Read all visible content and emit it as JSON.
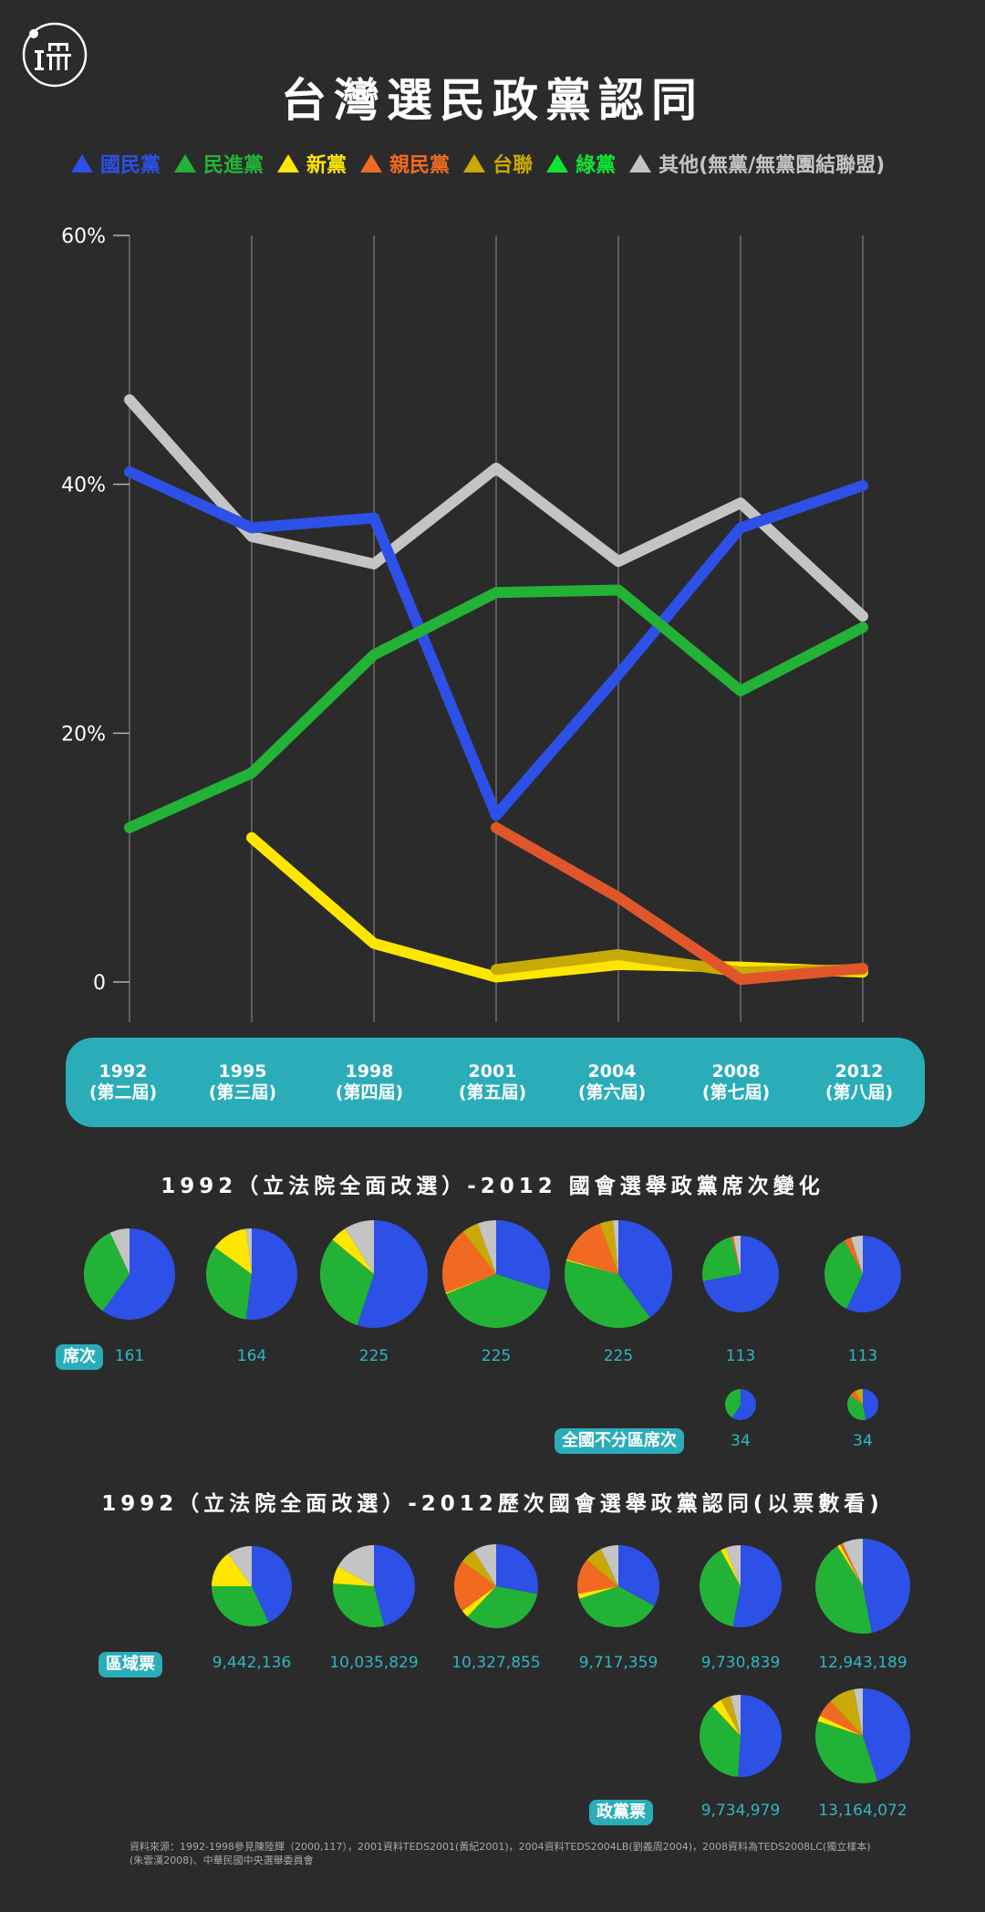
{
  "title": "台灣選民政黨認同",
  "logo_text": "端",
  "legend": [
    {
      "name": "國民黨",
      "color": "#2d50e6"
    },
    {
      "name": "民進黨",
      "color": "#22b336"
    },
    {
      "name": "新黨",
      "color": "#ffe600"
    },
    {
      "name": "親民黨",
      "color": "#f26a21"
    },
    {
      "name": "台聯",
      "color": "#c9a905"
    },
    {
      "name": "綠黨",
      "color": "#0ee636"
    },
    {
      "name": "其他(無黨/無黨團結聯盟)",
      "color": "#c4c4c4"
    }
  ],
  "chart_data": {
    "type": "line",
    "x": [
      "1992",
      "1995",
      "1998",
      "2001",
      "2004",
      "2008",
      "2012"
    ],
    "x_tick_labels": [
      {
        "year": "1992",
        "term": "(第二屆)"
      },
      {
        "year": "1995",
        "term": "(第三屆)"
      },
      {
        "year": "1998",
        "term": "(第四屆)"
      },
      {
        "year": "2001",
        "term": "(第五屆)"
      },
      {
        "year": "2004",
        "term": "(第六屆)"
      },
      {
        "year": "2008",
        "term": "(第七屆)"
      },
      {
        "year": "2012",
        "term": "(第八屆)"
      }
    ],
    "y_ticks": [
      {
        "value": 0,
        "label": "0"
      },
      {
        "value": 20,
        "label": "20%"
      },
      {
        "value": 40,
        "label": "40%"
      },
      {
        "value": 60,
        "label": "60%"
      }
    ],
    "ylim": [
      0,
      60
    ],
    "series": [
      {
        "name": "其他(無黨/無黨團結聯盟)",
        "color": "#c4c4c4",
        "values": [
          46.8,
          35.8,
          33.6,
          41.3,
          33.8,
          38.5,
          29.4
        ]
      },
      {
        "name": "國民黨",
        "color": "#2d50e6",
        "values": [
          41.0,
          36.5,
          37.3,
          13.4,
          24.7,
          36.5,
          39.9
        ]
      },
      {
        "name": "民進黨",
        "color": "#22b336",
        "values": [
          12.4,
          16.8,
          26.3,
          31.3,
          31.5,
          23.4,
          28.5
        ]
      },
      {
        "name": "新黨",
        "color": "#ffe600",
        "values": [
          null,
          11.6,
          3.1,
          0.4,
          1.4,
          1.2,
          0.8
        ]
      },
      {
        "name": "台聯",
        "color": "#c9a905",
        "values": [
          null,
          null,
          null,
          1.0,
          2.2,
          0.8,
          1.0
        ]
      },
      {
        "name": "親民黨",
        "color": "#e0562a",
        "values": [
          null,
          null,
          null,
          12.4,
          6.8,
          0.2,
          1.1
        ]
      }
    ]
  },
  "seats_section": {
    "title": "1992（立法院全面改選）-2012 國會選舉政黨席次變化",
    "seats_tag": "席次",
    "at_large_tag": "全國不分區席次",
    "district_pies": [
      {
        "label": "161",
        "slices": [
          0.6,
          0.33,
          0.0,
          0.0,
          0.0,
          0.07
        ]
      },
      {
        "label": "164",
        "slices": [
          0.52,
          0.33,
          0.13,
          0.0,
          0.0,
          0.02
        ]
      },
      {
        "label": "225",
        "slices": [
          0.55,
          0.31,
          0.05,
          0.0,
          0.0,
          0.09
        ]
      },
      {
        "label": "225",
        "slices": [
          0.3,
          0.39,
          0.004,
          0.2,
          0.05,
          0.056
        ]
      },
      {
        "label": "225",
        "slices": [
          0.4,
          0.39,
          0.004,
          0.15,
          0.04,
          0.016
        ]
      },
      {
        "label": "113",
        "slices": [
          0.72,
          0.24,
          0.0,
          0.01,
          0.0,
          0.03
        ]
      },
      {
        "label": "113",
        "slices": [
          0.57,
          0.35,
          0.0,
          0.03,
          0.0,
          0.05
        ]
      }
    ],
    "at_large_pies": [
      {
        "label": "34",
        "slices": [
          0.59,
          0.41,
          0.0,
          0.0,
          0.0,
          0.0
        ]
      },
      {
        "label": "34",
        "slices": [
          0.47,
          0.38,
          0.0,
          0.06,
          0.09,
          0.0
        ]
      }
    ]
  },
  "votes_section": {
    "title": "1992（立法院全面改選）-2012歷次國會選舉政黨認同(以票數看)",
    "district_tag": "區域票",
    "party_tag": "政黨票",
    "district_pies": [
      {
        "label": "9,442,136",
        "slices": [
          0.43,
          0.32,
          0.15,
          0.0,
          0.0,
          0.1
        ]
      },
      {
        "label": "10,035,829",
        "slices": [
          0.46,
          0.3,
          0.07,
          0.0,
          0.0,
          0.17
        ]
      },
      {
        "label": "10,327,855",
        "slices": [
          0.28,
          0.34,
          0.03,
          0.2,
          0.06,
          0.09
        ]
      },
      {
        "label": "9,717,359",
        "slices": [
          0.33,
          0.37,
          0.02,
          0.14,
          0.07,
          0.07
        ]
      },
      {
        "label": "9,730,839",
        "slices": [
          0.53,
          0.39,
          0.02,
          0.0,
          0.0,
          0.06
        ]
      },
      {
        "label": "12,943,189",
        "slices": [
          0.47,
          0.44,
          0.01,
          0.01,
          0.0,
          0.07
        ]
      }
    ],
    "party_pies": [
      {
        "label": "9,734,979",
        "slices": [
          0.51,
          0.37,
          0.04,
          0.0,
          0.04,
          0.04
        ]
      },
      {
        "label": "13,164,072",
        "slices": [
          0.45,
          0.35,
          0.02,
          0.06,
          0.09,
          0.03
        ]
      }
    ]
  },
  "pie_colors": [
    "#2d50e6",
    "#22b336",
    "#ffe600",
    "#f26a21",
    "#c9a905",
    "#c4c4c4"
  ],
  "source": "資料來源：1992-1998參見陳陸輝（2000,117），2001資料TEDS2001(黃紀2001)，2004資料TEDS2004LB(劉義周2004)，2008資料為TEDS2008LC(獨立樣本)(朱雲漢2008)、中華民國中央選舉委員會"
}
